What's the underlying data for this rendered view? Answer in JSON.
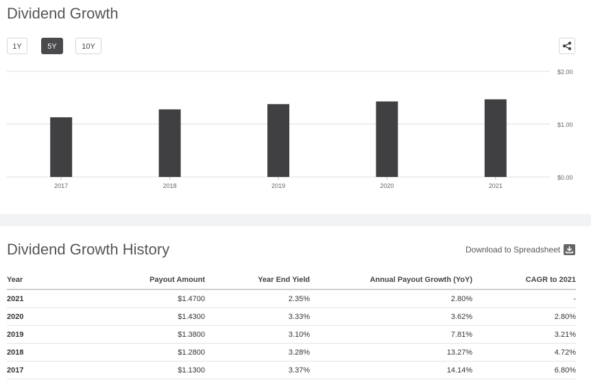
{
  "chart_section": {
    "title": "Dividend Growth",
    "range_buttons": [
      "1Y",
      "5Y",
      "10Y"
    ],
    "active_range": "5Y"
  },
  "chart_data": {
    "type": "bar",
    "categories": [
      "2017",
      "2018",
      "2019",
      "2020",
      "2021"
    ],
    "values": [
      1.13,
      1.28,
      1.38,
      1.43,
      1.47
    ],
    "ylim": [
      0,
      2
    ],
    "yticks": [
      0,
      1,
      2
    ],
    "ytick_labels": [
      "$0.00",
      "$1.00",
      "$2.00"
    ],
    "bar_color": "#404043",
    "grid": true
  },
  "history": {
    "title": "Dividend Growth History",
    "download_label": "Download to Spreadsheet",
    "columns": [
      "Year",
      "Payout Amount",
      "Year End Yield",
      "Annual Payout Growth (YoY)",
      "CAGR to 2021"
    ],
    "rows": [
      [
        "2021",
        "$1.4700",
        "2.35%",
        "2.80%",
        "-"
      ],
      [
        "2020",
        "$1.4300",
        "3.33%",
        "3.62%",
        "2.80%"
      ],
      [
        "2019",
        "$1.3800",
        "3.10%",
        "7.81%",
        "3.21%"
      ],
      [
        "2018",
        "$1.2800",
        "3.28%",
        "13.27%",
        "4.72%"
      ],
      [
        "2017",
        "$1.1300",
        "3.37%",
        "14.14%",
        "6.80%"
      ]
    ]
  }
}
